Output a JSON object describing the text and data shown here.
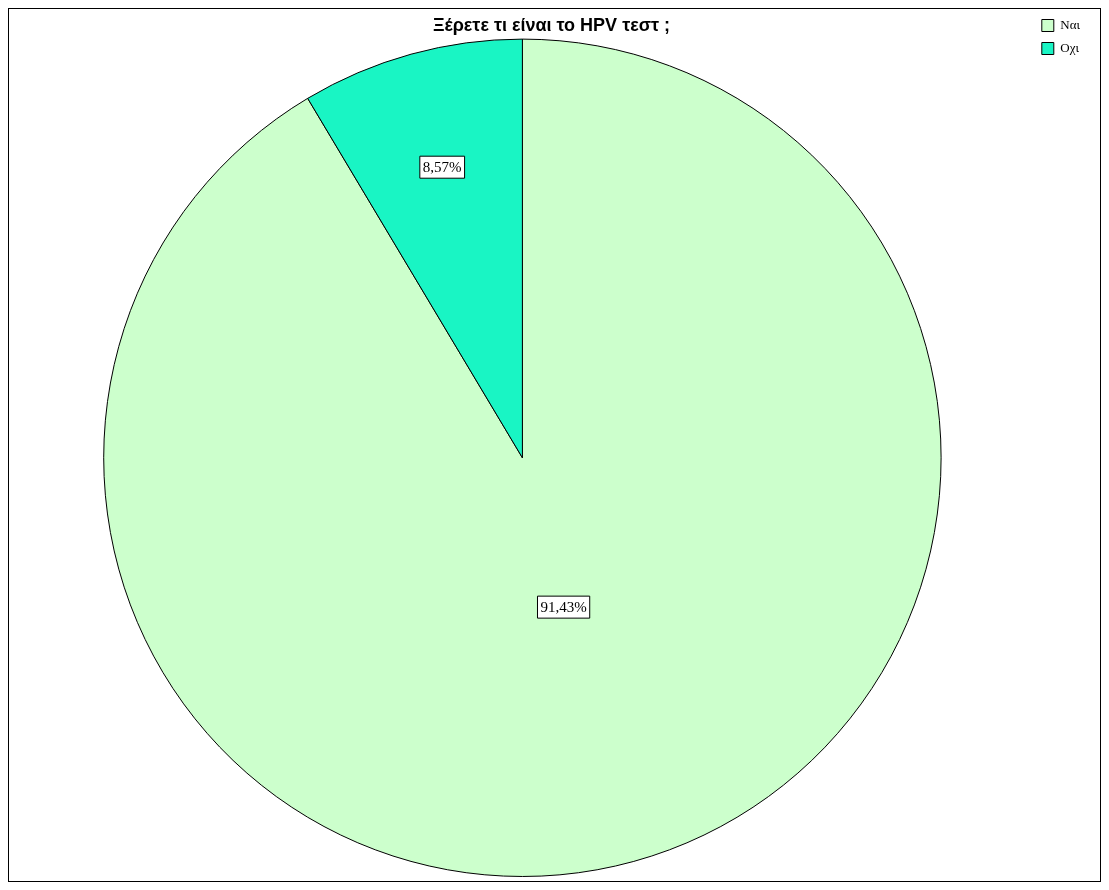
{
  "chart_data": {
    "type": "pie",
    "title": "Ξέρετε τι είναι το HPV τεστ ;",
    "categories": [
      "Ναι",
      "Οχι"
    ],
    "values": [
      91.43,
      8.57
    ],
    "value_labels": [
      "91,43%",
      "8,57%"
    ],
    "colors": [
      "#ccffcc",
      "#19f5c4"
    ],
    "legend": "top right"
  }
}
